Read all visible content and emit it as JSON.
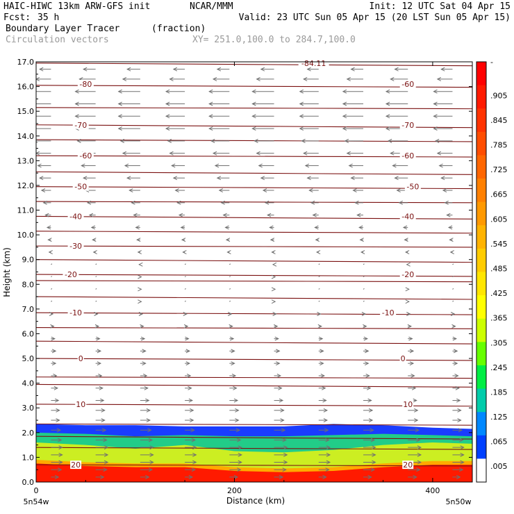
{
  "header": {
    "model": "HAIC-HIWC 13km ARW-GFS init",
    "org": "NCAR/MMM",
    "init": "Init: 12 UTC Sat 04 Apr 15",
    "fcst_label": "Fcst:",
    "fcst_value": "35 h",
    "valid": "Valid: 23 UTC Sun 05 Apr 15 (20 LST Sun 05 Apr 15)",
    "field_name": "Boundary Layer Tracer",
    "field_units": "(fraction)",
    "overlay": "Circulation vectors",
    "xy_range": "XY= 251.0,100.0 to 284.7,100.0"
  },
  "chart_data": {
    "type": "heatmap",
    "xlabel": "Distance (km)",
    "ylabel": "Height (km)",
    "xlim": [
      0,
      440
    ],
    "ylim": [
      0,
      17
    ],
    "x_ticks": [
      "0",
      "200",
      "400"
    ],
    "y_ticks": [
      "0.0",
      "1.0",
      "2.0",
      "3.0",
      "4.0",
      "5.0",
      "6.0",
      "7.0",
      "8.0",
      "9.0",
      "10.0",
      "11.0",
      "12.0",
      "13.0",
      "14.0",
      "15.0",
      "16.0",
      "17.0"
    ],
    "x_left_label": "5n54w",
    "x_right_label": "5n50w",
    "colorbar": {
      "ticks": [
        "-",
        ".905",
        ".845",
        ".785",
        ".725",
        ".665",
        ".605",
        ".545",
        ".485",
        ".425",
        ".365",
        ".305",
        ".245",
        ".185",
        ".125",
        ".065",
        ".005"
      ],
      "colors": [
        "#ff0000",
        "#ff1a00",
        "#ff3300",
        "#ff4d00",
        "#ff6600",
        "#ff8000",
        "#ff9900",
        "#ffb300",
        "#ffcc00",
        "#ffe600",
        "#ffff00",
        "#ccff00",
        "#66ff00",
        "#00ee44",
        "#00ccaa",
        "#0088ff",
        "#0040ff",
        "#ffffff"
      ]
    },
    "tracer_profile": [
      {
        "x": 0,
        "top": 2.35,
        "t1": 2.0,
        "t2": 1.6,
        "t3": 0.9
      },
      {
        "x": 50,
        "top": 2.3,
        "t1": 1.95,
        "t2": 1.5,
        "t3": 0.8
      },
      {
        "x": 100,
        "top": 2.3,
        "t1": 1.85,
        "t2": 1.35,
        "t3": 0.75
      },
      {
        "x": 150,
        "top": 2.25,
        "t1": 1.9,
        "t2": 1.5,
        "t3": 0.75
      },
      {
        "x": 200,
        "top": 2.25,
        "t1": 1.85,
        "t2": 1.25,
        "t3": 0.6
      },
      {
        "x": 250,
        "top": 2.25,
        "t1": 1.85,
        "t2": 1.2,
        "t3": 0.55
      },
      {
        "x": 300,
        "top": 2.35,
        "t1": 1.9,
        "t2": 1.3,
        "t3": 0.6
      },
      {
        "x": 350,
        "top": 2.3,
        "t1": 1.95,
        "t2": 1.5,
        "t3": 0.75
      },
      {
        "x": 400,
        "top": 2.2,
        "t1": 1.9,
        "t2": 1.6,
        "t3": 0.85
      },
      {
        "x": 440,
        "top": 2.15,
        "t1": 1.85,
        "t2": 1.55,
        "t3": 0.85
      }
    ],
    "contour_levels_km": [
      0.7,
      1.4,
      1.85,
      2.35,
      3.15,
      3.95,
      4.25,
      5.0,
      5.7,
      6.25,
      6.85,
      7.5,
      8.15,
      8.4,
      9.0,
      9.55,
      10.15,
      10.75,
      11.35,
      11.95,
      12.55,
      13.2,
      13.85,
      14.45,
      15.15,
      16.05,
      16.95
    ],
    "contour_labels": [
      {
        "text": "-80",
        "x": 50,
        "y": 16.1
      },
      {
        "text": "-60",
        "x": 375,
        "y": 16.1
      },
      {
        "text": "-70",
        "x": 45,
        "y": 14.45
      },
      {
        "text": "-70",
        "x": 375,
        "y": 14.45
      },
      {
        "text": "-60",
        "x": 50,
        "y": 13.2
      },
      {
        "text": "-60",
        "x": 375,
        "y": 13.2
      },
      {
        "text": "-50",
        "x": 45,
        "y": 11.95
      },
      {
        "text": "-50",
        "x": 380,
        "y": 11.95
      },
      {
        "text": "-40",
        "x": 40,
        "y": 10.75
      },
      {
        "text": "-40",
        "x": 375,
        "y": 10.75
      },
      {
        "text": "-30",
        "x": 40,
        "y": 9.55
      },
      {
        "text": "-20",
        "x": 35,
        "y": 8.4
      },
      {
        "text": "-20",
        "x": 375,
        "y": 8.4
      },
      {
        "text": "-10",
        "x": 40,
        "y": 6.85
      },
      {
        "text": "-10",
        "x": 355,
        "y": 6.85
      },
      {
        "text": "0",
        "x": 45,
        "y": 5.0
      },
      {
        "text": "0",
        "x": 370,
        "y": 5.0
      },
      {
        "text": "10",
        "x": 45,
        "y": 3.15
      },
      {
        "text": "10",
        "x": 375,
        "y": 3.15
      },
      {
        "text": "20",
        "x": 40,
        "y": 0.7
      },
      {
        "text": "20",
        "x": 375,
        "y": 0.7
      },
      {
        "text": "-84.11",
        "x": 280,
        "y": 16.95
      }
    ],
    "wind_layers": [
      {
        "y": 16.7,
        "u": -0.6
      },
      {
        "y": 16.3,
        "u": -0.8
      },
      {
        "y": 15.8,
        "u": -1.0
      },
      {
        "y": 15.3,
        "u": -1.0
      },
      {
        "y": 14.8,
        "u": -1.0
      },
      {
        "y": 14.3,
        "u": -1.0
      },
      {
        "y": 13.8,
        "u": -0.9
      },
      {
        "y": 13.3,
        "u": -0.8
      },
      {
        "y": 12.8,
        "u": -0.7
      },
      {
        "y": 12.3,
        "u": -0.6
      },
      {
        "y": 11.8,
        "u": -0.5
      },
      {
        "y": 11.3,
        "u": -0.4
      },
      {
        "y": 10.8,
        "u": -0.3
      },
      {
        "y": 10.3,
        "u": -0.2
      },
      {
        "y": 9.8,
        "u": -0.15
      },
      {
        "y": 9.3,
        "u": -0.1
      },
      {
        "y": 8.8,
        "u": -0.05
      },
      {
        "y": 8.3,
        "u": 0.05
      },
      {
        "y": 7.8,
        "u": 0.05
      },
      {
        "y": 7.3,
        "u": 0.05
      },
      {
        "y": 6.8,
        "u": 0.1
      },
      {
        "y": 6.3,
        "u": 0.15
      },
      {
        "y": 5.8,
        "u": 0.2
      },
      {
        "y": 5.3,
        "u": 0.25
      },
      {
        "y": 4.8,
        "u": 0.25
      },
      {
        "y": 4.3,
        "u": 0.3
      },
      {
        "y": 3.8,
        "u": 0.35
      },
      {
        "y": 3.3,
        "u": 0.4
      },
      {
        "y": 2.9,
        "u": 0.45
      },
      {
        "y": 2.5,
        "u": 0.45
      },
      {
        "y": 2.1,
        "u": 0.5
      },
      {
        "y": 1.7,
        "u": 0.55
      },
      {
        "y": 1.4,
        "u": 0.6
      },
      {
        "y": 1.1,
        "u": 0.6
      },
      {
        "y": 0.8,
        "u": 0.6
      },
      {
        "y": 0.5,
        "u": 0.55
      },
      {
        "y": 0.2,
        "u": 0.4
      }
    ],
    "wind_columns_km": [
      15,
      60,
      105,
      150,
      195,
      240,
      285,
      330,
      375,
      420
    ]
  }
}
